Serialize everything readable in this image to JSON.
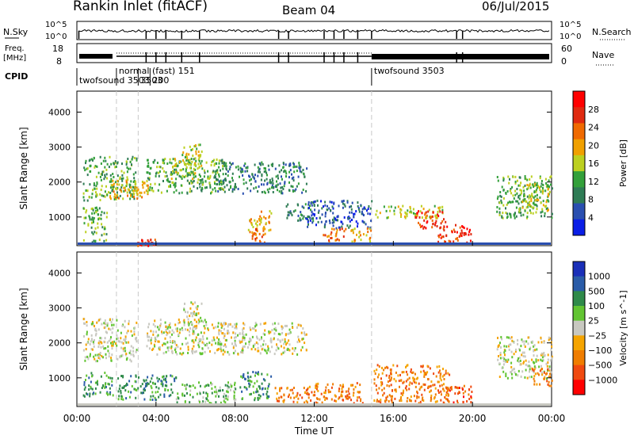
{
  "header": {
    "title": "Rankin Inlet (fitACF)",
    "beam": "Beam 04",
    "date": "06/Jul/2015"
  },
  "nsky_panel": {
    "left_label": "N.Sky",
    "right_label": "N.Search",
    "left_ticks": [
      "10^5",
      "10^0"
    ],
    "right_ticks": [
      "10^5",
      "10^0"
    ]
  },
  "freq_panel": {
    "left_label_1": "Freq.",
    "left_label_2": "[MHz]",
    "right_label": "Nave",
    "left_ticks": [
      "18",
      "8"
    ],
    "right_ticks": [
      "60",
      "0"
    ]
  },
  "cpid": {
    "label": "CPID",
    "entries": [
      {
        "hour": 0.0,
        "text": "twofsound 3503",
        "row": 2
      },
      {
        "hour": 2.0,
        "text": "normal (fast) 151",
        "row": 1
      },
      {
        "hour": 3.1,
        "text": "3503",
        "row": 2
      },
      {
        "hour": 3.7,
        "text": "200",
        "row": 2
      },
      {
        "hour": 14.9,
        "text": "twofsound 3503",
        "row": 1
      }
    ]
  },
  "colors": {
    "power": [
      "#0a1ee6",
      "#2a4fb0",
      "#2f7c55",
      "#33a03a",
      "#bcd020",
      "#f0a000",
      "#f06a00",
      "#e02a10",
      "#ff0000"
    ],
    "velocity": [
      "#ff0000",
      "#f04a10",
      "#f07d00",
      "#f5a400",
      "#c8c8c0",
      "#62c432",
      "#2f8a4a",
      "#2a5ca8",
      "#1a2fb8"
    ]
  },
  "chart_data": [
    {
      "type": "heatmap",
      "name": "power",
      "ylabel": "Slant Range [km]",
      "xlabel": "",
      "xlim": [
        0,
        24
      ],
      "ylim": [
        180,
        4600
      ],
      "yticks": [
        "1000",
        "2000",
        "3000",
        "4000"
      ],
      "xticks": [
        "00:00",
        "04:00",
        "08:00",
        "12:00",
        "16:00",
        "20:00",
        "00:00"
      ],
      "colorbar_label": "Power [dB]",
      "colorbar_ticks": [
        "28",
        "24",
        "20",
        "16",
        "12",
        "8",
        "4"
      ],
      "patches": [
        {
          "x": [
            0.3,
            3.0
          ],
          "y": [
            1500,
            2750
          ],
          "level": 3
        },
        {
          "x": [
            1.6,
            3.6
          ],
          "y": [
            1550,
            2100
          ],
          "level": 5
        },
        {
          "x": [
            3.5,
            7.5
          ],
          "y": [
            1700,
            2700
          ],
          "level": 3
        },
        {
          "x": [
            4.5,
            6.0
          ],
          "y": [
            2100,
            2700
          ],
          "level": 4
        },
        {
          "x": [
            5.3,
            6.3
          ],
          "y": [
            2400,
            3200
          ],
          "level": 4
        },
        {
          "x": [
            7.0,
            11.6
          ],
          "y": [
            1700,
            2600
          ],
          "level": 2
        },
        {
          "x": [
            8.6,
            9.8
          ],
          "y": [
            600,
            1200
          ],
          "level": 5
        },
        {
          "x": [
            8.8,
            9.5
          ],
          "y": [
            300,
            700
          ],
          "level": 6
        },
        {
          "x": [
            10.5,
            12.0
          ],
          "y": [
            900,
            1400
          ],
          "level": 2
        },
        {
          "x": [
            11.6,
            14.9
          ],
          "y": [
            700,
            1500
          ],
          "level": 1
        },
        {
          "x": [
            12.4,
            13.6
          ],
          "y": [
            300,
            700
          ],
          "level": 6
        },
        {
          "x": [
            13.8,
            14.9
          ],
          "y": [
            300,
            700
          ],
          "level": 5
        },
        {
          "x": [
            15.0,
            18.5
          ],
          "y": [
            1000,
            1350
          ],
          "level": 4
        },
        {
          "x": [
            17.0,
            18.6
          ],
          "y": [
            700,
            1200
          ],
          "level": 7
        },
        {
          "x": [
            18.2,
            20.0
          ],
          "y": [
            300,
            800
          ],
          "level": 7
        },
        {
          "x": [
            21.2,
            24.0
          ],
          "y": [
            1000,
            2200
          ],
          "level": 3
        },
        {
          "x": [
            22.3,
            23.8
          ],
          "y": [
            1200,
            2000
          ],
          "level": 4
        },
        {
          "x": [
            0.3,
            1.5
          ],
          "y": [
            300,
            1300
          ],
          "level": 3
        },
        {
          "x": [
            3.0,
            4.0
          ],
          "y": [
            200,
            400
          ],
          "level": 7
        }
      ]
    },
    {
      "type": "heatmap",
      "name": "velocity",
      "ylabel": "Slant Range [km]",
      "xlabel": "Time UT",
      "xlim": [
        0,
        24
      ],
      "ylim": [
        180,
        4600
      ],
      "yticks": [
        "1000",
        "2000",
        "3000",
        "4000"
      ],
      "xticks": [
        "00:00",
        "04:00",
        "08:00",
        "12:00",
        "16:00",
        "20:00",
        "00:00"
      ],
      "colorbar_label": "Velocity [m s^-1]",
      "colorbar_ticks": [
        "1000",
        "500",
        "100",
        "25",
        "−25",
        "−100",
        "−500",
        "−1000"
      ],
      "patches": [
        {
          "x": [
            0.3,
            3.0
          ],
          "y": [
            1500,
            2750
          ],
          "level": 4
        },
        {
          "x": [
            3.5,
            7.5
          ],
          "y": [
            1700,
            2700
          ],
          "level": 4
        },
        {
          "x": [
            5.3,
            6.3
          ],
          "y": [
            2400,
            3200
          ],
          "level": 4
        },
        {
          "x": [
            7.0,
            11.6
          ],
          "y": [
            1700,
            2600
          ],
          "level": 4
        },
        {
          "x": [
            0.3,
            1.8
          ],
          "y": [
            500,
            1200
          ],
          "level": 6
        },
        {
          "x": [
            2.0,
            5.0
          ],
          "y": [
            400,
            1100
          ],
          "level": 6
        },
        {
          "x": [
            5.0,
            8.0
          ],
          "y": [
            300,
            900
          ],
          "level": 5
        },
        {
          "x": [
            8.2,
            9.8
          ],
          "y": [
            400,
            1200
          ],
          "level": 6
        },
        {
          "x": [
            10.0,
            12.0
          ],
          "y": [
            300,
            800
          ],
          "level": 2
        },
        {
          "x": [
            12.0,
            14.5
          ],
          "y": [
            300,
            900
          ],
          "level": 2
        },
        {
          "x": [
            15.0,
            18.8
          ],
          "y": [
            300,
            1400
          ],
          "level": 2
        },
        {
          "x": [
            18.4,
            20.0
          ],
          "y": [
            300,
            800
          ],
          "level": 1
        },
        {
          "x": [
            21.2,
            24.0
          ],
          "y": [
            1000,
            2200
          ],
          "level": 4
        },
        {
          "x": [
            23.0,
            24.0
          ],
          "y": [
            800,
            1300
          ],
          "level": 2
        }
      ]
    }
  ]
}
